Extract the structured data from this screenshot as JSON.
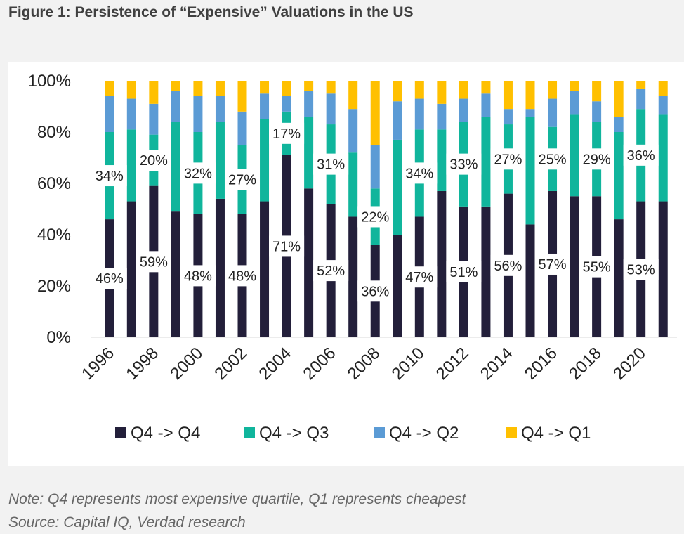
{
  "title": "Figure 1: Persistence of “Expensive” Valuations in the US",
  "footer": {
    "note": "Note: Q4 represents most expensive quartile, Q1 represents cheapest",
    "source": "Source: Capital IQ, Verdad research"
  },
  "chart_data": {
    "type": "bar",
    "stacked": true,
    "categories": [
      "1996",
      "1997",
      "1998",
      "1999",
      "2000",
      "2001",
      "2002",
      "2003",
      "2004",
      "2005",
      "2006",
      "2007",
      "2008",
      "2009",
      "2010",
      "2011",
      "2012",
      "2013",
      "2014",
      "2015",
      "2016",
      "2017",
      "2018",
      "2019",
      "2020",
      "2021"
    ],
    "x_tick_labels": [
      "1996",
      "",
      "1998",
      "",
      "2000",
      "",
      "2002",
      "",
      "2004",
      "",
      "2006",
      "",
      "2008",
      "",
      "2010",
      "",
      "2012",
      "",
      "2014",
      "",
      "2016",
      "",
      "2018",
      "",
      "2020",
      ""
    ],
    "ylim": [
      0,
      100
    ],
    "y_ticks": [
      0,
      20,
      40,
      60,
      80,
      100
    ],
    "y_tick_labels": [
      "0%",
      "20%",
      "40%",
      "60%",
      "80%",
      "100%"
    ],
    "grid": false,
    "legend_position": "bottom",
    "series": [
      {
        "name": "Q4 -> Q4",
        "color": "#231f3a",
        "values": [
          46,
          53,
          59,
          49,
          48,
          54,
          48,
          53,
          71,
          58,
          52,
          47,
          36,
          40,
          47,
          57,
          51,
          51,
          56,
          44,
          57,
          55,
          55,
          46,
          53,
          53
        ]
      },
      {
        "name": "Q4 -> Q3",
        "color": "#10b59c",
        "values": [
          34,
          28,
          20,
          35,
          32,
          30,
          27,
          32,
          17,
          28,
          31,
          25,
          22,
          37,
          34,
          24,
          33,
          35,
          27,
          42,
          25,
          32,
          29,
          34,
          36,
          34
        ]
      },
      {
        "name": "Q4 -> Q2",
        "color": "#5b9bd5",
        "values": [
          14,
          12,
          12,
          12,
          14,
          10,
          13,
          10,
          6,
          10,
          12,
          17,
          17,
          15,
          12,
          10,
          9,
          9,
          6,
          3,
          11,
          9,
          8,
          6,
          8,
          7
        ]
      },
      {
        "name": "Q4 -> Q1",
        "color": "#ffc000",
        "values": [
          6,
          7,
          9,
          4,
          6,
          6,
          12,
          5,
          6,
          4,
          5,
          11,
          25,
          8,
          7,
          9,
          7,
          5,
          11,
          11,
          7,
          4,
          8,
          14,
          3,
          6
        ]
      }
    ],
    "data_labels": [
      {
        "category": "1996",
        "series": "Q4 -> Q4",
        "text": "46%"
      },
      {
        "category": "1996",
        "series": "Q4 -> Q3",
        "text": "34%"
      },
      {
        "category": "1998",
        "series": "Q4 -> Q4",
        "text": "59%"
      },
      {
        "category": "1998",
        "series": "Q4 -> Q3",
        "text": "20%"
      },
      {
        "category": "2000",
        "series": "Q4 -> Q4",
        "text": "48%"
      },
      {
        "category": "2000",
        "series": "Q4 -> Q3",
        "text": "32%"
      },
      {
        "category": "2002",
        "series": "Q4 -> Q4",
        "text": "48%"
      },
      {
        "category": "2002",
        "series": "Q4 -> Q3",
        "text": "27%"
      },
      {
        "category": "2004",
        "series": "Q4 -> Q4",
        "text": "71%"
      },
      {
        "category": "2004",
        "series": "Q4 -> Q3",
        "text": "17%"
      },
      {
        "category": "2006",
        "series": "Q4 -> Q4",
        "text": "52%"
      },
      {
        "category": "2006",
        "series": "Q4 -> Q3",
        "text": "31%"
      },
      {
        "category": "2008",
        "series": "Q4 -> Q4",
        "text": "36%"
      },
      {
        "category": "2008",
        "series": "Q4 -> Q3",
        "text": "22%"
      },
      {
        "category": "2010",
        "series": "Q4 -> Q4",
        "text": "47%"
      },
      {
        "category": "2010",
        "series": "Q4 -> Q3",
        "text": "34%"
      },
      {
        "category": "2012",
        "series": "Q4 -> Q4",
        "text": "51%"
      },
      {
        "category": "2012",
        "series": "Q4 -> Q3",
        "text": "33%"
      },
      {
        "category": "2014",
        "series": "Q4 -> Q4",
        "text": "56%"
      },
      {
        "category": "2014",
        "series": "Q4 -> Q3",
        "text": "27%"
      },
      {
        "category": "2016",
        "series": "Q4 -> Q4",
        "text": "57%"
      },
      {
        "category": "2016",
        "series": "Q4 -> Q3",
        "text": "25%"
      },
      {
        "category": "2018",
        "series": "Q4 -> Q4",
        "text": "55%"
      },
      {
        "category": "2018",
        "series": "Q4 -> Q3",
        "text": "29%"
      },
      {
        "category": "2020",
        "series": "Q4 -> Q4",
        "text": "53%"
      },
      {
        "category": "2020",
        "series": "Q4 -> Q3",
        "text": "36%"
      }
    ]
  }
}
